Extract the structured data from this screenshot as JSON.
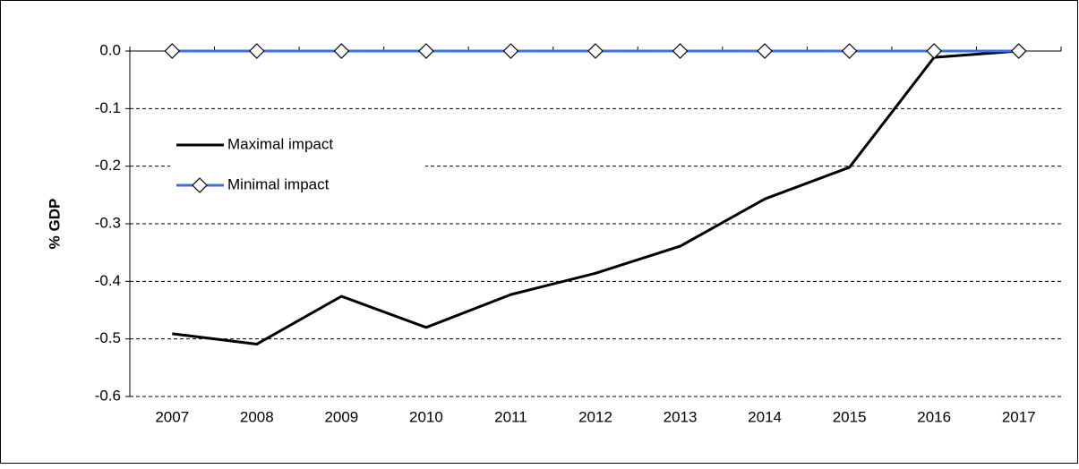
{
  "chart_data": {
    "type": "line",
    "y_label": "% GDP",
    "categories": [
      "2007",
      "2008",
      "2009",
      "2010",
      "2011",
      "2012",
      "2013",
      "2014",
      "2015",
      "2016",
      "2017"
    ],
    "series": [
      {
        "name": "Maximal impact",
        "color": "#000000",
        "values": [
          -0.491,
          -0.509,
          -0.426,
          -0.48,
          -0.423,
          -0.386,
          -0.339,
          -0.257,
          -0.202,
          -0.011,
          0
        ]
      },
      {
        "name": "Minimal impact",
        "color": "#3c6ee6",
        "marker": "diamond",
        "values": [
          0,
          0,
          0,
          0,
          0,
          0,
          0,
          0,
          0,
          0,
          0
        ]
      }
    ],
    "ylim": [
      -0.6,
      0
    ],
    "yticks": [
      {
        "value": 0,
        "label": "0.0"
      },
      -0.1,
      -0.2,
      -0.3,
      -0.4,
      -0.5,
      -0.6
    ],
    "grid": true,
    "legend": "upper-left"
  }
}
